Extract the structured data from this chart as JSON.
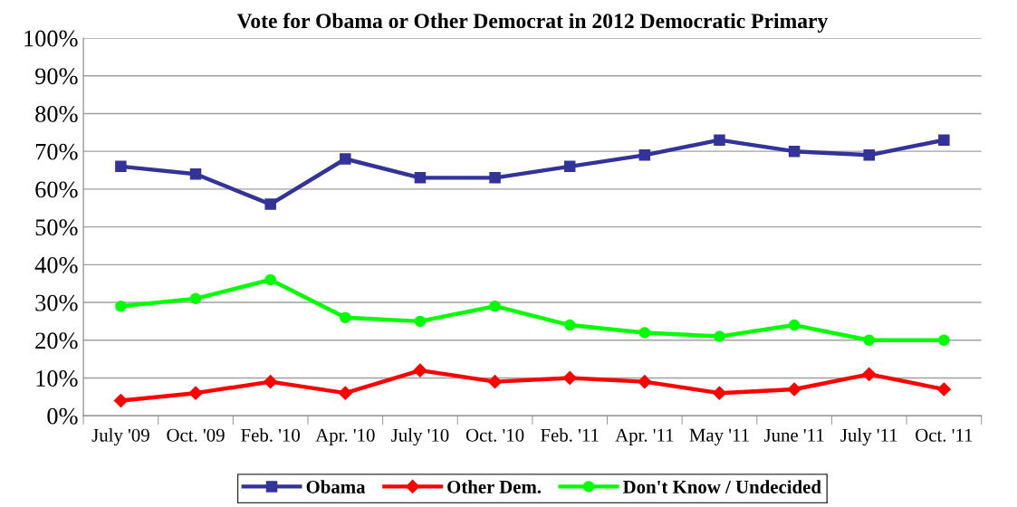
{
  "chart_data": {
    "type": "line",
    "title": "Vote for Obama or Other Democrat in 2012 Democratic Primary",
    "categories": [
      "July '09",
      "Oct. '09",
      "Feb. '10",
      "Apr. '10",
      "July '10",
      "Oct. '10",
      "Feb. '11",
      "Apr. '11",
      "May '11",
      "June '11",
      "July '11",
      "Oct. '11"
    ],
    "series": [
      {
        "name": "Obama",
        "color": "#333399",
        "marker": "square",
        "values": [
          66,
          64,
          56,
          68,
          63,
          63,
          66,
          69,
          73,
          70,
          69,
          73
        ]
      },
      {
        "name": "Other Dem.",
        "color": "#ff0000",
        "marker": "diamond",
        "values": [
          4,
          6,
          9,
          6,
          12,
          9,
          10,
          9,
          6,
          7,
          11,
          7
        ]
      },
      {
        "name": "Don't Know / Undecided",
        "color": "#00ff00",
        "marker": "circle",
        "values": [
          29,
          31,
          36,
          26,
          25,
          29,
          24,
          22,
          21,
          24,
          20,
          20
        ]
      }
    ],
    "ylim": [
      0,
      100
    ],
    "yticks": [
      {
        "value": 0,
        "label": "0%"
      },
      {
        "value": 10,
        "label": "10%"
      },
      {
        "value": 20,
        "label": "20%"
      },
      {
        "value": 30,
        "label": "30%"
      },
      {
        "value": 40,
        "label": "40%"
      },
      {
        "value": 50,
        "label": "50%"
      },
      {
        "value": 60,
        "label": "60%"
      },
      {
        "value": 70,
        "label": "70%"
      },
      {
        "value": 80,
        "label": "80%"
      },
      {
        "value": 90,
        "label": "90%"
      },
      {
        "value": 100,
        "label": "100%"
      }
    ],
    "grid": "y",
    "legend": "bottom",
    "line_style": "solid"
  }
}
